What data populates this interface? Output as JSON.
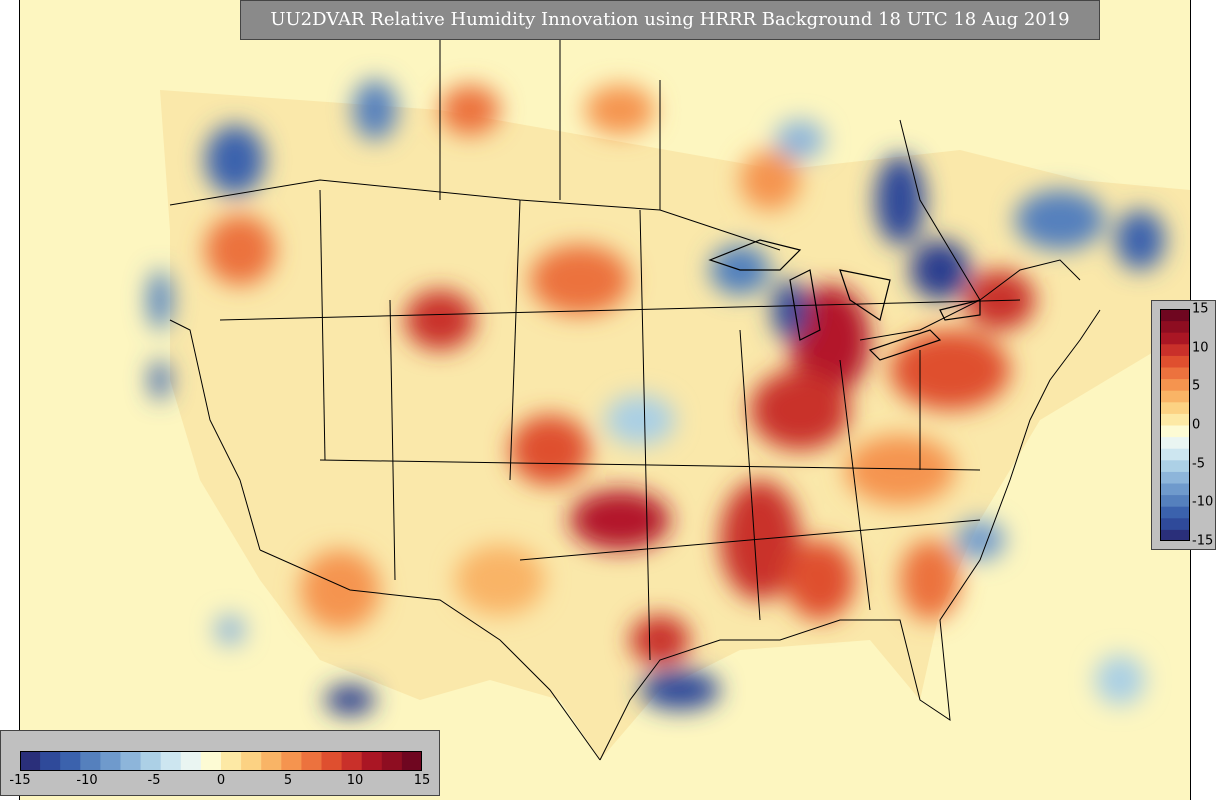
{
  "title": "UU2DVAR Relative Humidity Innovation using HRRR Background 18 UTC 18 Aug 2019",
  "colorbar": {
    "min": -15,
    "max": 15,
    "tick_labels": [
      "-15",
      "-10",
      "-5",
      "0",
      "5",
      "10",
      "15"
    ],
    "colors": [
      "#2a2f7a",
      "#2f4a9a",
      "#3b62ad",
      "#5580bd",
      "#6f9acc",
      "#8db5da",
      "#acd0e6",
      "#cde6f0",
      "#eaf5f2",
      "#fdfbd4",
      "#fde9a5",
      "#fcd283",
      "#f9b466",
      "#f5944f",
      "#ec723e",
      "#df4f2f",
      "#c9302a",
      "#aa1624",
      "#8e0d21",
      "#6f0620"
    ]
  },
  "map": {
    "region": "CONUS",
    "background_color": "#fdf6c0",
    "feature_colors": {
      "strong_positive": "#b3152a",
      "positive": "#e8553a",
      "weak_positive": "#f6a25c",
      "weak_negative": "#a9cfe5",
      "negative": "#4f7fbe",
      "strong_negative": "#2a3d8f"
    }
  }
}
